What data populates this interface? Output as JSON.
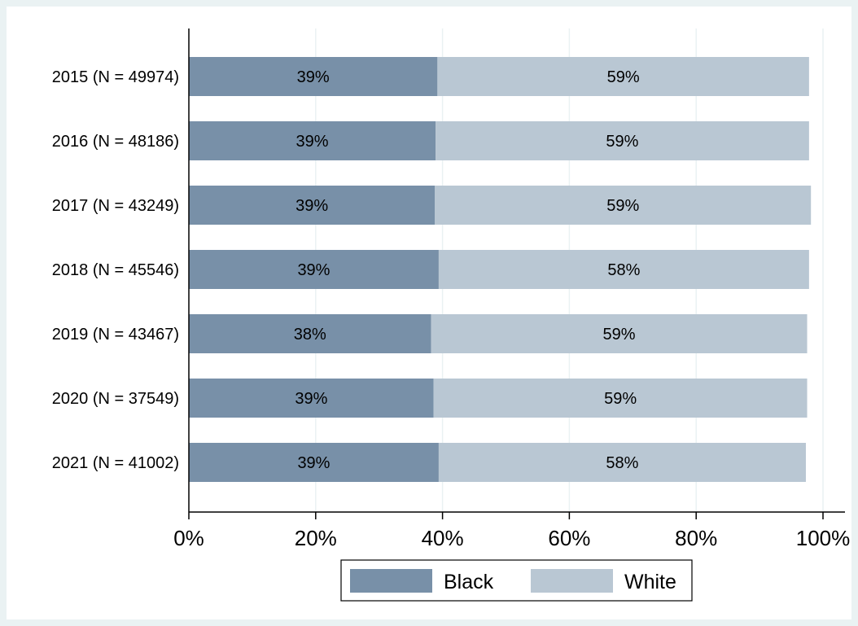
{
  "chart_data": {
    "type": "bar",
    "orientation": "horizontal",
    "stacked": true,
    "categories": [
      "2015 (N = 49974)",
      "2016 (N = 48186)",
      "2017 (N = 43249)",
      "2018 (N = 45546)",
      "2019 (N = 43467)",
      "2020 (N = 37549)",
      "2021 (N = 41002)"
    ],
    "series": [
      {
        "name": "Black",
        "color": "#7890a8",
        "values": [
          39.2,
          38.9,
          38.8,
          39.4,
          38.2,
          38.6,
          39.4
        ],
        "labels": [
          "39%",
          "39%",
          "39%",
          "39%",
          "38%",
          "39%",
          "39%"
        ]
      },
      {
        "name": "White",
        "color": "#b9c7d3",
        "values": [
          58.6,
          58.9,
          59.3,
          58.4,
          59.3,
          58.9,
          57.9
        ],
        "labels": [
          "59%",
          "59%",
          "59%",
          "58%",
          "59%",
          "59%",
          "58%"
        ]
      }
    ],
    "xlim": [
      0,
      100
    ],
    "xticks": [
      0,
      20,
      40,
      60,
      80,
      100
    ],
    "xtick_labels": [
      "0%",
      "20%",
      "40%",
      "60%",
      "80%",
      "100%"
    ],
    "grid": true,
    "legend_position": "bottom",
    "title": "",
    "xlabel": "",
    "ylabel": ""
  }
}
